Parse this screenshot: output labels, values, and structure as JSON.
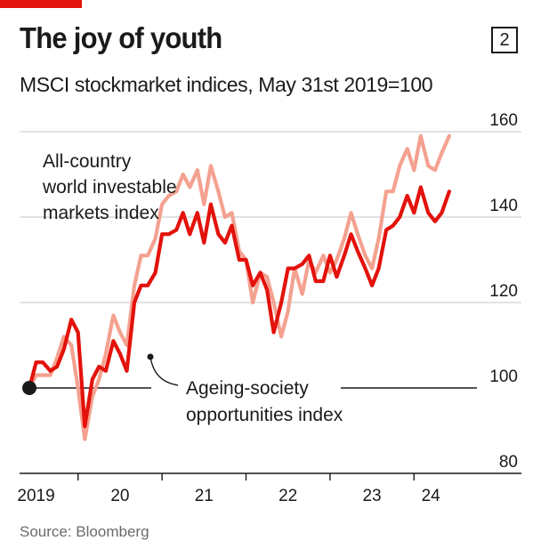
{
  "header": {
    "title": "The joy of youth",
    "chart_number": "2",
    "subtitle": "MSCI stockmarket indices, May 31st 2019=100"
  },
  "footer": {
    "source": "Source: Bloomberg"
  },
  "colors": {
    "accent": "#e3120b",
    "series_dark": "#e3120b",
    "series_light": "#f4a190",
    "axis": "#1a1a1a",
    "grid": "#d0d0d0"
  },
  "chart_data": {
    "type": "line",
    "title": "The joy of youth",
    "subtitle": "MSCI stockmarket indices, May 31st 2019=100",
    "xlabel": "",
    "ylabel": "",
    "xlim": [
      2019.42,
      2024.58
    ],
    "ylim": [
      80,
      160
    ],
    "y_ticks": [
      80,
      100,
      120,
      140,
      160
    ],
    "x_ticks": [
      {
        "label": "2019",
        "value": 2019.5
      },
      {
        "label": "20",
        "value": 2020.5
      },
      {
        "label": "21",
        "value": 2021.5
      },
      {
        "label": "22",
        "value": 2022.5
      },
      {
        "label": "23",
        "value": 2023.5
      },
      {
        "label": "24",
        "value": 2024.2
      }
    ],
    "x_tick_marks": [
      2020,
      2021,
      2022,
      2023,
      2024
    ],
    "grid": true,
    "reference_value": 100,
    "series": [
      {
        "name": "All-country world investable markets index",
        "label_lines": [
          "All-country",
          "world investable",
          "markets index"
        ],
        "color": "#f4a190",
        "x": [
          2019.42,
          2019.5,
          2019.58,
          2019.67,
          2019.75,
          2019.83,
          2019.92,
          2020.0,
          2020.08,
          2020.17,
          2020.25,
          2020.33,
          2020.42,
          2020.5,
          2020.58,
          2020.67,
          2020.75,
          2020.83,
          2020.92,
          2021.0,
          2021.08,
          2021.17,
          2021.25,
          2021.33,
          2021.42,
          2021.5,
          2021.58,
          2021.67,
          2021.75,
          2021.83,
          2021.92,
          2022.0,
          2022.08,
          2022.17,
          2022.25,
          2022.33,
          2022.42,
          2022.5,
          2022.58,
          2022.67,
          2022.75,
          2022.83,
          2022.92,
          2023.0,
          2023.08,
          2023.17,
          2023.25,
          2023.33,
          2023.42,
          2023.5,
          2023.58,
          2023.67,
          2023.75,
          2023.83,
          2023.92,
          2024.0,
          2024.08,
          2024.17,
          2024.25,
          2024.33,
          2024.42
        ],
        "values": [
          100,
          103,
          103,
          103,
          107,
          112,
          110,
          100,
          88,
          98,
          102,
          108,
          117,
          113,
          110,
          124,
          131,
          131,
          135,
          143,
          145,
          146,
          150,
          147,
          151,
          143,
          152,
          146,
          140,
          141,
          132,
          130,
          120,
          127,
          126,
          120,
          112,
          118,
          128,
          122,
          130,
          127,
          131,
          127,
          130,
          135,
          141,
          136,
          131,
          128,
          135,
          146,
          146,
          152,
          156,
          151,
          159,
          152,
          151,
          155,
          159
        ]
      },
      {
        "name": "Ageing-society opportunities index",
        "label_lines": [
          "Ageing-society",
          "opportunities index"
        ],
        "color": "#e3120b",
        "x": [
          2019.42,
          2019.5,
          2019.58,
          2019.67,
          2019.75,
          2019.83,
          2019.92,
          2020.0,
          2020.08,
          2020.17,
          2020.25,
          2020.33,
          2020.42,
          2020.5,
          2020.58,
          2020.67,
          2020.75,
          2020.83,
          2020.92,
          2021.0,
          2021.08,
          2021.17,
          2021.25,
          2021.33,
          2021.42,
          2021.5,
          2021.58,
          2021.67,
          2021.75,
          2021.83,
          2021.92,
          2022.0,
          2022.08,
          2022.17,
          2022.25,
          2022.33,
          2022.42,
          2022.5,
          2022.58,
          2022.67,
          2022.75,
          2022.83,
          2022.92,
          2023.0,
          2023.08,
          2023.17,
          2023.25,
          2023.33,
          2023.42,
          2023.5,
          2023.58,
          2023.67,
          2023.75,
          2023.83,
          2023.92,
          2024.0,
          2024.08,
          2024.17,
          2024.25,
          2024.33,
          2024.42
        ],
        "values": [
          100,
          106,
          106,
          104,
          105,
          109,
          116,
          113,
          91,
          102,
          105,
          104,
          111,
          108,
          104,
          120,
          124,
          124,
          127,
          136,
          136,
          137,
          141,
          136,
          141,
          134,
          143,
          136,
          134,
          138,
          130,
          130,
          124,
          127,
          123,
          113,
          120,
          128,
          128,
          129,
          131,
          125,
          125,
          131,
          126,
          131,
          136,
          132,
          128,
          124,
          128,
          137,
          138,
          140,
          145,
          141,
          147,
          141,
          139,
          141,
          146
        ]
      }
    ]
  }
}
